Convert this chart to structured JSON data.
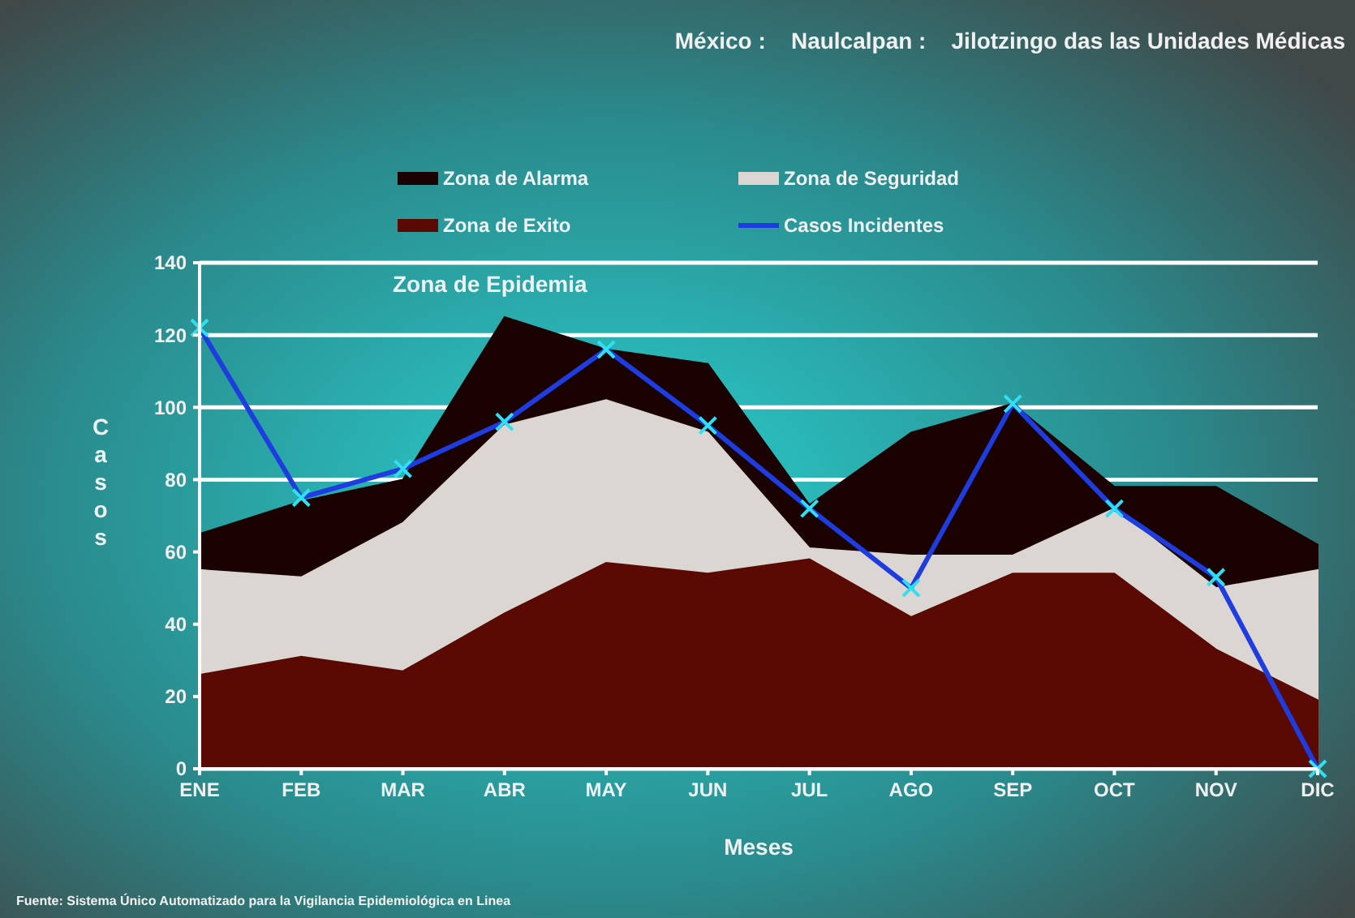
{
  "chart_data": {
    "type": "area",
    "title": "México :    Naulcalpan :    Jilotzingo das las Unidades Médicas",
    "xlabel": "Meses",
    "ylabel": "Casos",
    "categories": [
      "ENE",
      "FEB",
      "MAR",
      "ABR",
      "MAY",
      "JUN",
      "JUL",
      "AGO",
      "SEP",
      "OCT",
      "NOV",
      "DIC"
    ],
    "series": [
      {
        "name": "Zona de Alarma",
        "color": "#1a0202",
        "values": [
          65,
          74,
          80,
          125,
          116,
          112,
          73,
          93,
          101,
          78,
          78,
          62
        ]
      },
      {
        "name": "Zona de Seguridad",
        "color": "#dcd6d2",
        "values": [
          55,
          53,
          68,
          95,
          102,
          93,
          61,
          59,
          59,
          72,
          50,
          55
        ]
      },
      {
        "name": "Zona de Exito",
        "color": "#5a0a02",
        "values": [
          26,
          31,
          27,
          43,
          57,
          54,
          58,
          42,
          54,
          54,
          33,
          19
        ]
      },
      {
        "name": "Casos Incidentes",
        "type": "line",
        "color": "#1e3ce0",
        "marker": "cross",
        "values": [
          122,
          75,
          83,
          96,
          116,
          95,
          72,
          50,
          101,
          72,
          53,
          0
        ]
      }
    ],
    "ylim": [
      0,
      140
    ],
    "yticks": [
      0,
      20,
      40,
      60,
      80,
      100,
      120,
      140
    ],
    "grid": "y",
    "legend": "top",
    "annotations": [
      "Zona de Epidemia",
      "Fuente: Sistema Único Automatizado para la Vigilancia Epidemiológica en Linea"
    ]
  }
}
